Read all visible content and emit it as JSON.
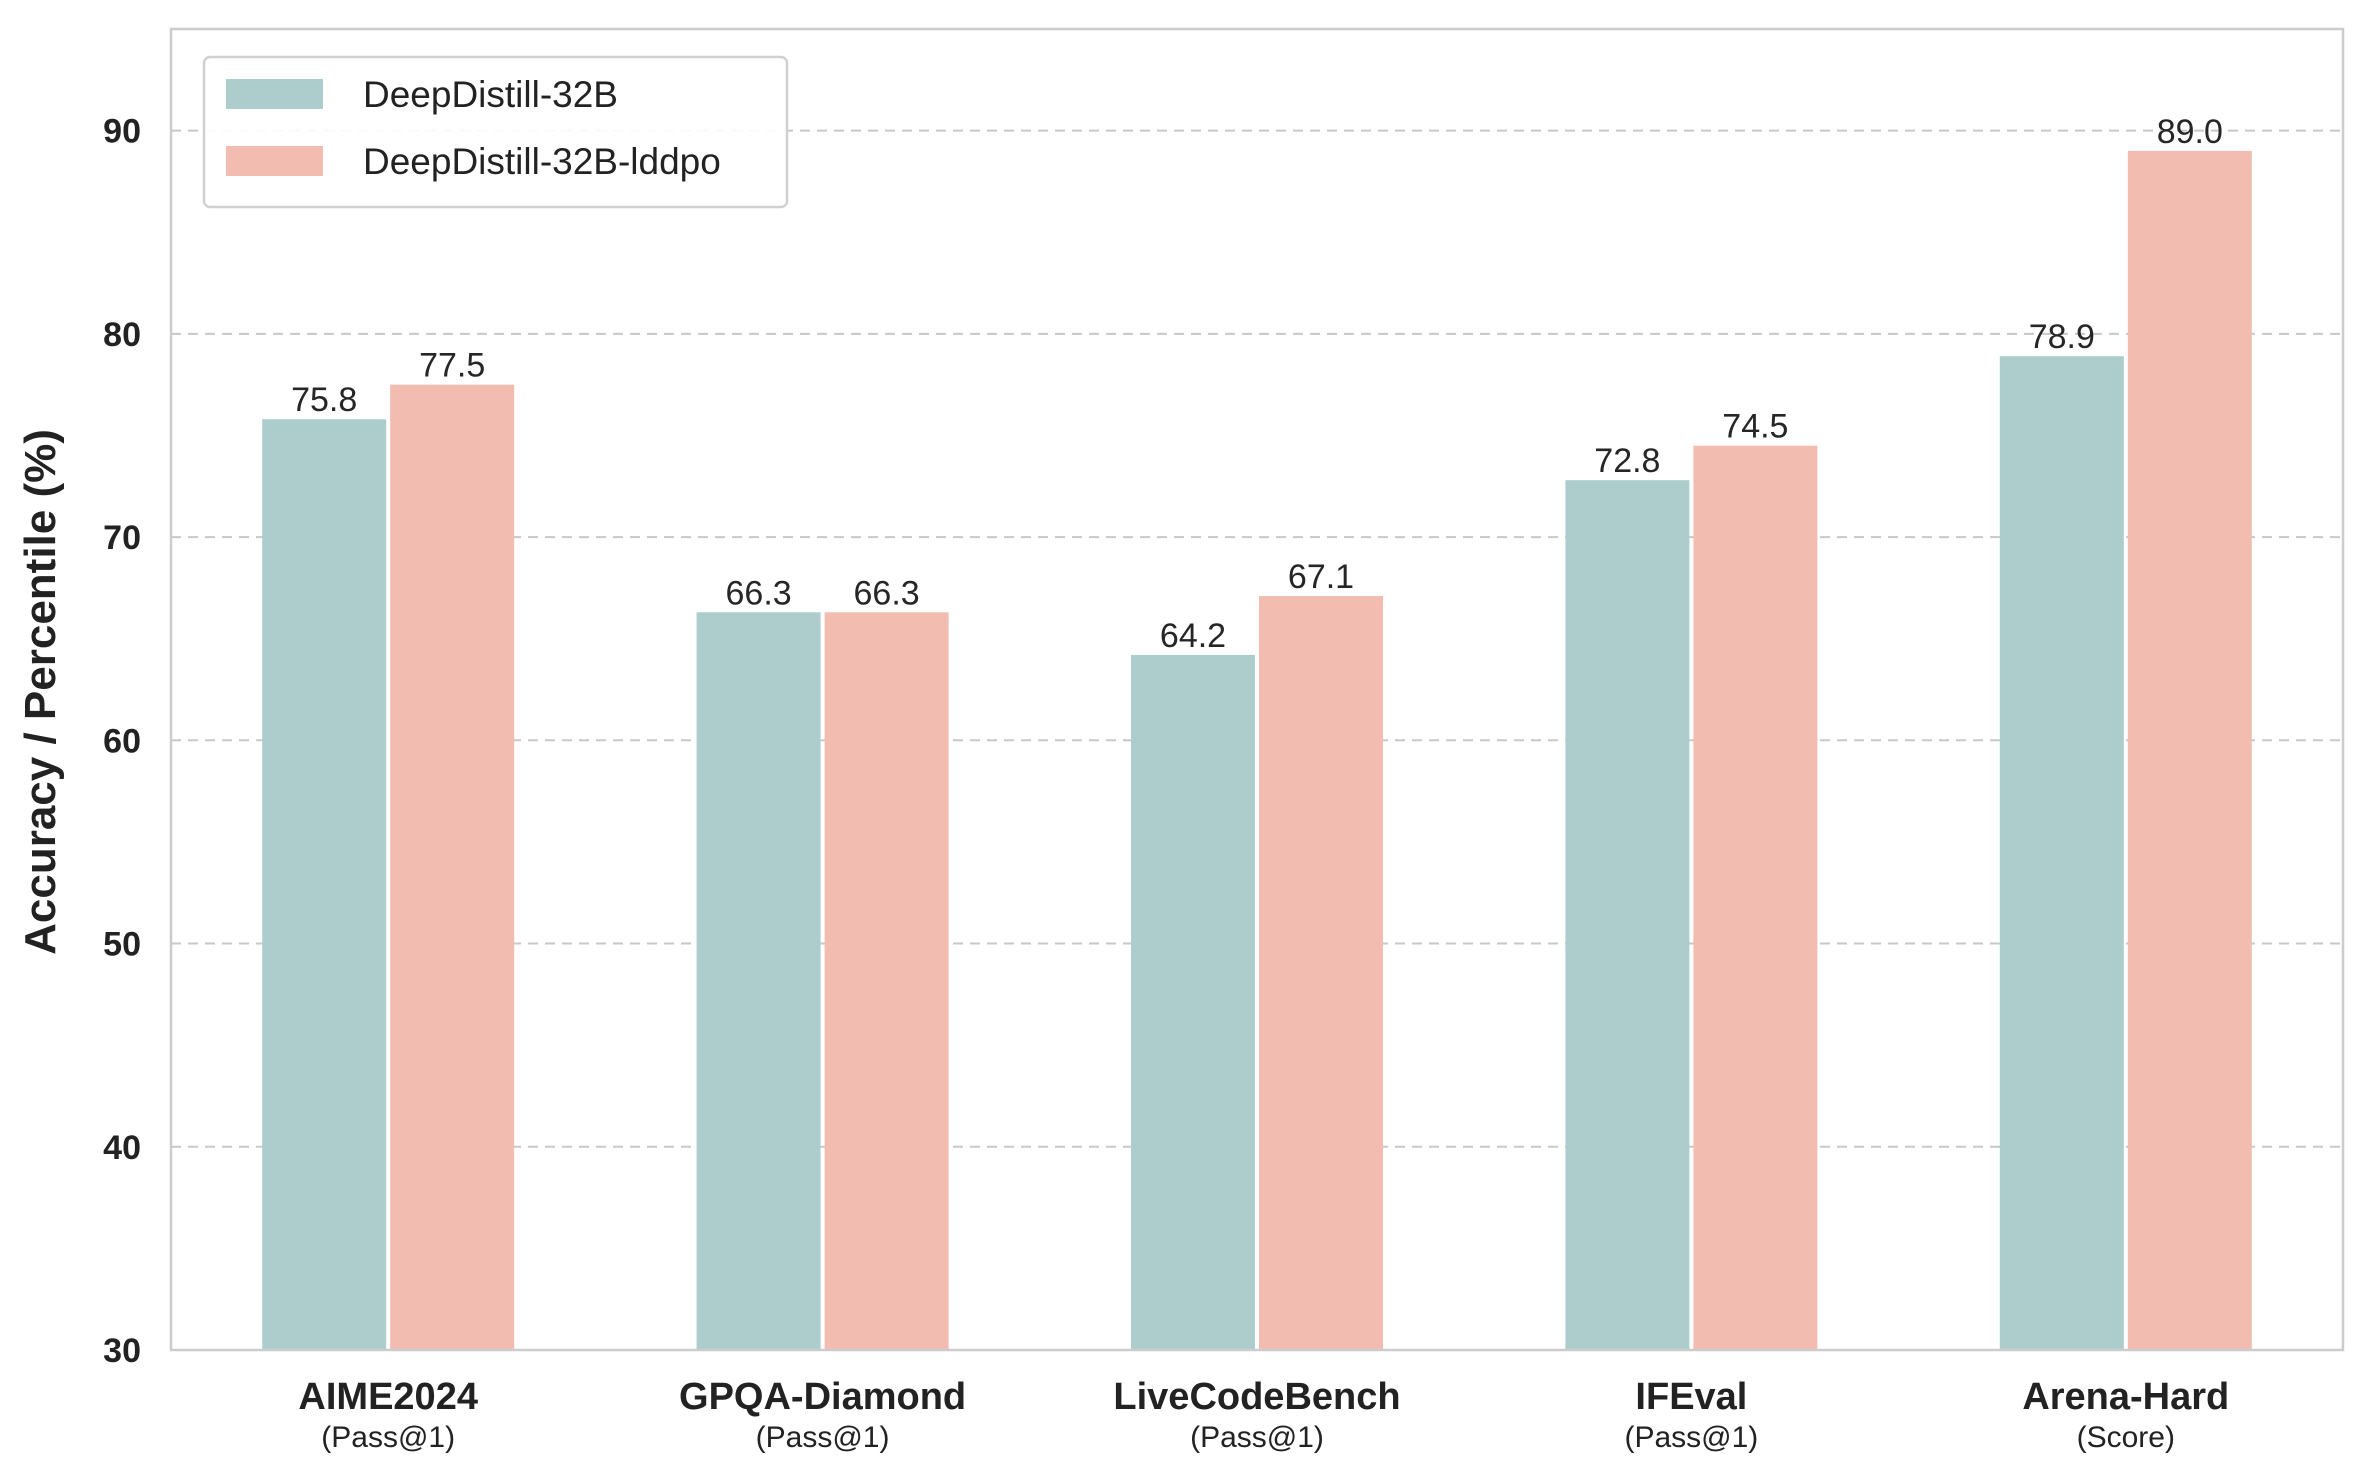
{
  "chart_data": {
    "type": "bar",
    "categories": [
      "AIME2024",
      "GPQA-Diamond",
      "LiveCodeBench",
      "IFEval",
      "Arena-Hard"
    ],
    "category_sublabels": [
      "(Pass@1)",
      "(Pass@1)",
      "(Pass@1)",
      "(Pass@1)",
      "(Score)"
    ],
    "series": [
      {
        "name": "DeepDistill-32B",
        "color": "#adcdcd",
        "values": [
          75.8,
          66.3,
          64.2,
          72.8,
          78.9
        ]
      },
      {
        "name": "DeepDistill-32B-lddpo",
        "color": "#f3bcb1",
        "values": [
          77.5,
          66.3,
          67.1,
          74.5,
          89.0
        ]
      }
    ],
    "data_labels": [
      [
        "75.8",
        "66.3",
        "64.2",
        "72.8",
        "78.9"
      ],
      [
        "77.5",
        "66.3",
        "67.1",
        "74.5",
        "89.0"
      ]
    ],
    "ylabel": "Accuracy / Percentile (%)",
    "xlabel": "",
    "title": "",
    "ylim": [
      30,
      95
    ],
    "yticks": [
      30,
      40,
      50,
      60,
      70,
      80,
      90
    ],
    "ytick_labels": [
      "30",
      "40",
      "50",
      "60",
      "70",
      "80",
      "90"
    ],
    "grid": "y-dashed",
    "legend_position": "top-left"
  }
}
